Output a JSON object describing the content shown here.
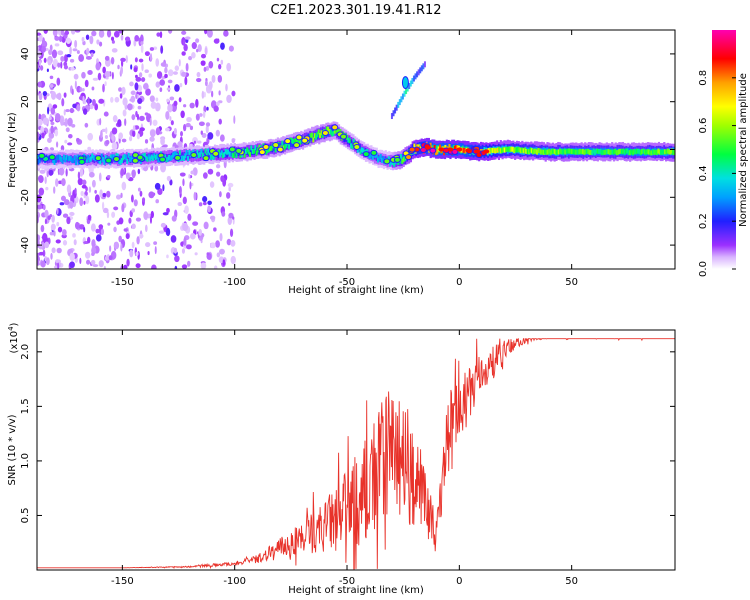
{
  "chart_data": [
    {
      "type": "heatmap",
      "title": "C2E1.2023.301.19.41.R12",
      "xlabel": "Height of straight line (km)",
      "ylabel": "Frequency (Hz)",
      "xlim": [
        -188,
        96
      ],
      "ylim": [
        -50,
        50
      ],
      "xticks": [
        -150,
        -100,
        -50,
        0,
        50
      ],
      "yticks": [
        -40,
        -20,
        0,
        20,
        40
      ],
      "colorbar": {
        "label": "Normalized spectral amplitude",
        "range": [
          0.0,
          1.0
        ],
        "ticks": [
          0.0,
          0.2,
          0.4,
          0.6,
          0.8
        ],
        "tick_labels": [
          "0.0",
          "0.2",
          "0.4",
          "0.6",
          "0.8"
        ]
      },
      "ridge": {
        "x": [
          -188,
          -170,
          -150,
          -130,
          -110,
          -95,
          -80,
          -70,
          -60,
          -55,
          -50,
          -45,
          -40,
          -35,
          -30,
          -25,
          -20,
          -15,
          -10,
          -5,
          0,
          10,
          20,
          40,
          60,
          80,
          96
        ],
        "y": [
          -4,
          -4,
          -4,
          -3,
          -2,
          -1,
          1,
          4,
          7,
          8,
          4,
          1,
          -2,
          -4,
          -5,
          -4,
          0,
          1,
          0,
          0,
          0,
          -1,
          0,
          -1,
          -1,
          -1,
          -1
        ],
        "amplitude": [
          0.3,
          0.35,
          0.4,
          0.4,
          0.45,
          0.5,
          0.55,
          0.55,
          0.6,
          0.55,
          0.5,
          0.45,
          0.4,
          0.35,
          0.4,
          0.55,
          0.75,
          0.85,
          0.9,
          0.9,
          0.9,
          0.8,
          0.65,
          0.6,
          0.55,
          0.55,
          0.6
        ]
      },
      "secondary_branch": {
        "x": [
          -30,
          -24,
          -20,
          -15
        ],
        "y": [
          14,
          24,
          30,
          36
        ],
        "amplitude": [
          0.2,
          0.45,
          0.3,
          0.2
        ]
      },
      "noise_region_x": [
        -188,
        -110
      ]
    },
    {
      "type": "line",
      "title": "",
      "xlabel": "Height of straight line (km)",
      "ylabel": "SNR (10 * v/v)",
      "y_multiplier_label": "(x10",
      "y_multiplier_exp": "4",
      "y_multiplier_close": ")",
      "xlim": [
        -188,
        96
      ],
      "ylim": [
        0,
        2.2
      ],
      "xticks": [
        -150,
        -100,
        -50,
        0,
        50
      ],
      "yticks": [
        0.5,
        1.0,
        1.5,
        2.0
      ],
      "ytick_labels": [
        "0.5",
        "1.0",
        "1.5",
        "2.0"
      ],
      "series": [
        {
          "name": "SNR",
          "color": "#e8322a",
          "x": [
            -188,
            -150,
            -120,
            -100,
            -90,
            -80,
            -70,
            -60,
            -50,
            -40,
            -35,
            -30,
            -25,
            -20,
            -15,
            -10,
            -5,
            0,
            5,
            10,
            15,
            20,
            25,
            30,
            40,
            50,
            60,
            70,
            80,
            96
          ],
          "y": [
            0.02,
            0.02,
            0.03,
            0.06,
            0.1,
            0.2,
            0.3,
            0.4,
            0.55,
            0.75,
            0.95,
            1.1,
            1.05,
            0.95,
            0.6,
            0.3,
            1.35,
            1.45,
            1.65,
            1.8,
            1.9,
            2.0,
            2.08,
            2.12,
            2.14,
            2.15,
            2.15,
            2.14,
            2.14,
            2.15
          ],
          "noise": [
            0,
            0,
            0.01,
            0.03,
            0.06,
            0.15,
            0.25,
            0.4,
            0.6,
            0.9,
            1.0,
            1.0,
            0.9,
            0.7,
            0.5,
            0.3,
            0.45,
            0.45,
            0.4,
            0.3,
            0.25,
            0.18,
            0.1,
            0.05,
            0.03,
            0.03,
            0.03,
            0.03,
            0.03,
            0.03
          ]
        }
      ]
    }
  ]
}
